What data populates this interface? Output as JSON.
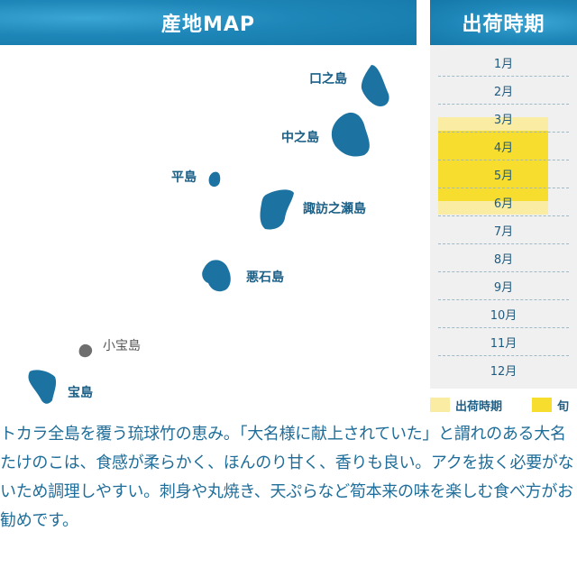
{
  "header": {
    "map_title": "産地MAP",
    "season_title": "出荷時期"
  },
  "islands": [
    {
      "name": "口之島"
    },
    {
      "name": "中之島"
    },
    {
      "name": "平島"
    },
    {
      "name": "諏訪之瀬島"
    },
    {
      "name": "悪石島"
    },
    {
      "name": "小宝島"
    },
    {
      "name": "宝島"
    }
  ],
  "months": [
    "1月",
    "2月",
    "3月",
    "4月",
    "5月",
    "6月",
    "7月",
    "8月",
    "9月",
    "10月",
    "11月",
    "12月"
  ],
  "shipping_period": {
    "start_month": 3,
    "end_month": 6
  },
  "peak_period": {
    "start_month": 4,
    "end_month": 6
  },
  "legend": {
    "shipping": "出荷時期",
    "peak": "旬"
  },
  "colors": {
    "header": "#1f88b8",
    "island": "#1c73a2",
    "island_gray": "#6e6e6e",
    "shipping": "#fbeca3",
    "peak": "#f7dd2e",
    "text": "#1f6d98"
  },
  "description": "トカラ全島を覆う琉球竹の恵み。「大名様に献上されていた」と謂れのある大名たけのこは、食感が柔らかく、ほんのり甘く、香りも良い。アクを抜く必要がないため調理しやすい。刺身や丸焼き、天ぷらなど筍本来の味を楽しむ食べ方がお勧めです。"
}
